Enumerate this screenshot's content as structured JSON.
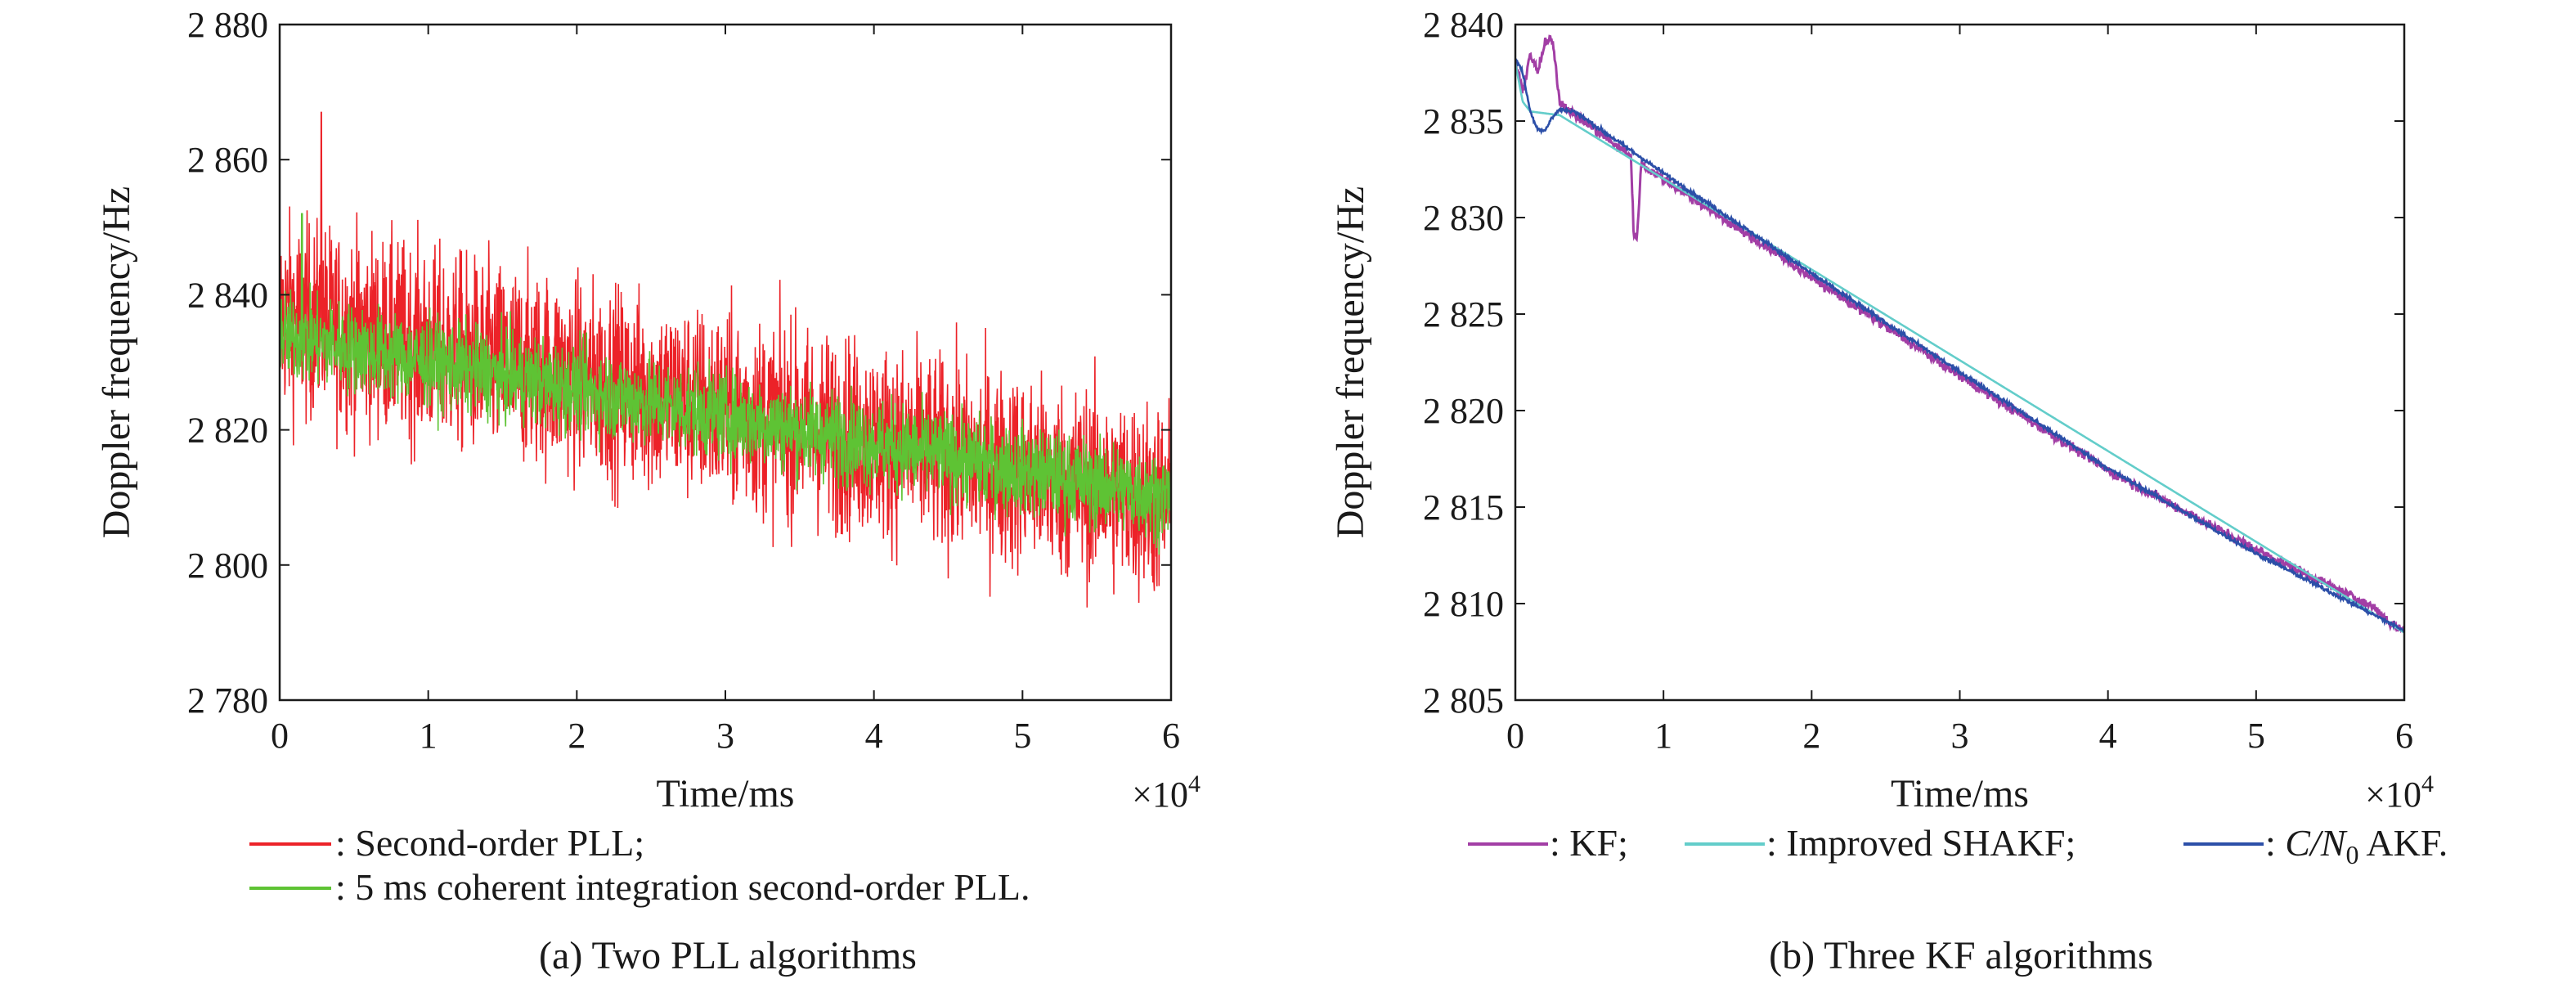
{
  "chart_data": [
    {
      "type": "line",
      "caption": "(a) Two PLL algorithms",
      "xlabel": "Time/ms",
      "ylabel": "Doppler frequency/Hz",
      "x_multiplier_base": "×10",
      "x_multiplier_exp": "4",
      "xlim": [
        0,
        6
      ],
      "ylim": [
        2780,
        2880
      ],
      "xticks": [
        0,
        1,
        2,
        3,
        4,
        5,
        6
      ],
      "xtick_labels": [
        "0",
        "1",
        "2",
        "3",
        "4",
        "5",
        "6"
      ],
      "yticks": [
        2780,
        2800,
        2820,
        2840,
        2860,
        2880
      ],
      "ytick_labels": [
        "2 780",
        "2 800",
        "2 820",
        "2 840",
        "2 860",
        "2 880"
      ],
      "grid": false,
      "legend_position": "below",
      "series": [
        {
          "name": ": Second-order PLL;",
          "color": "#ec2228",
          "trend_x": [
            0,
            6
          ],
          "trend_y": [
            2837,
            2809
          ],
          "band_halfwidth": 24,
          "spike": {
            "x": 0.28,
            "y": 2867
          }
        },
        {
          "name": ": 5 ms coherent integration second-order PLL.",
          "color": "#5ec334",
          "trend_x": [
            0,
            6
          ],
          "trend_y": [
            2834,
            2810
          ],
          "band_halfwidth": 11,
          "spike": {
            "x": 0.15,
            "y": 2852
          }
        }
      ]
    },
    {
      "type": "line",
      "caption": "(b) Three KF algorithms",
      "xlabel": "Time/ms",
      "ylabel": "Doppler frequency/Hz",
      "x_multiplier_base": "×10",
      "x_multiplier_exp": "4",
      "xlim": [
        0,
        6
      ],
      "ylim": [
        2805,
        2840
      ],
      "xticks": [
        0,
        1,
        2,
        3,
        4,
        5,
        6
      ],
      "xtick_labels": [
        "0",
        "1",
        "2",
        "3",
        "4",
        "5",
        "6"
      ],
      "yticks": [
        2805,
        2810,
        2815,
        2820,
        2825,
        2830,
        2835,
        2840
      ],
      "ytick_labels": [
        "2 805",
        "2 810",
        "2 815",
        "2 820",
        "2 825",
        "2 830",
        "2 835",
        "2 840"
      ],
      "grid": false,
      "legend_position": "below",
      "series": [
        {
          "name": ": KF;",
          "color": "#a23ea5",
          "x": [
            0,
            0.05,
            0.1,
            0.15,
            0.2,
            0.25,
            0.3,
            0.4,
            0.5,
            0.6,
            0.7,
            0.78,
            0.8,
            0.82,
            0.85,
            0.9,
            1.0,
            2.0,
            3.0,
            4.0,
            5.0,
            5.8,
            5.9,
            6.0
          ],
          "y": [
            2838,
            2836.5,
            2838.5,
            2837.5,
            2839,
            2839.3,
            2836,
            2835.3,
            2834.8,
            2834.2,
            2833.6,
            2833.2,
            2829,
            2828.9,
            2832.8,
            2832.5,
            2832,
            2826.9,
            2821.8,
            2816.9,
            2812.8,
            2809.8,
            2809,
            2808.6
          ],
          "noise": 0.35
        },
        {
          "name": ": Improved SHAKF;",
          "color": "#63cdca",
          "x": [
            0,
            0.05,
            0.1,
            0.3,
            6.0
          ],
          "y": [
            2838,
            2836,
            2835.5,
            2835.3,
            2808.5
          ],
          "noise": 0
        },
        {
          "name_prefix": ": ",
          "name_var": "C/N",
          "name_sub": "0",
          "name_suffix": " AKF.",
          "color": "#2c4fa8",
          "x": [
            0,
            0.05,
            0.1,
            0.15,
            0.2,
            0.25,
            0.3,
            0.4,
            1.0,
            2.0,
            3.0,
            4.0,
            5.0,
            6.0
          ],
          "y": [
            2838.3,
            2837.5,
            2835.5,
            2834.6,
            2834.5,
            2835.2,
            2835.6,
            2835.5,
            2832.3,
            2827.1,
            2822,
            2817,
            2812.6,
            2808.6
          ],
          "noise": 0.15
        }
      ]
    }
  ]
}
